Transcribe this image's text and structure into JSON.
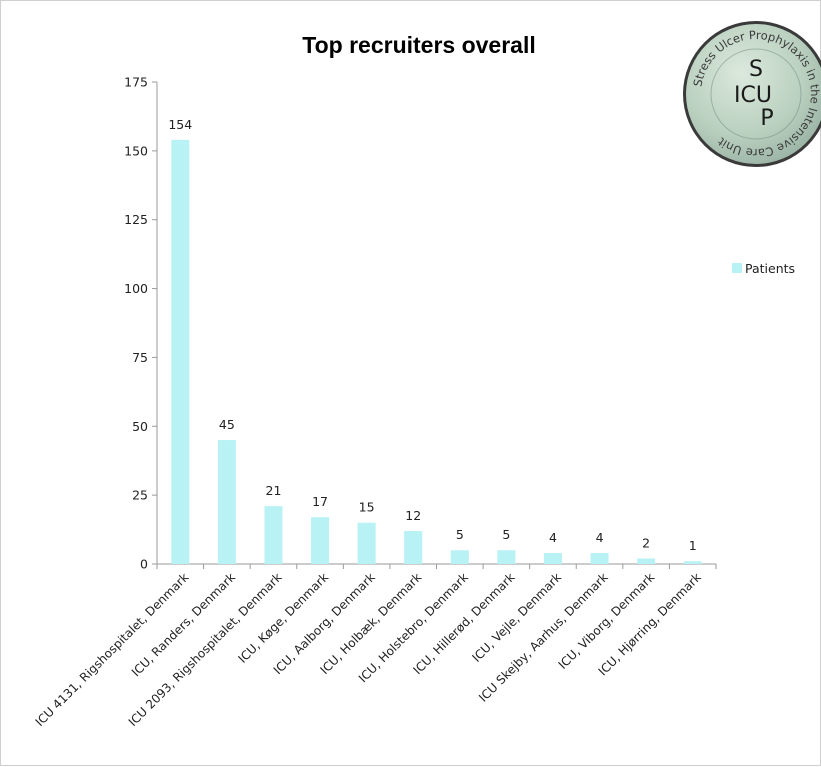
{
  "chart_data": {
    "type": "bar",
    "title": "Top recruiters overall",
    "xlabel": "",
    "ylabel": "",
    "ylim": [
      0,
      175
    ],
    "yticks": [
      0,
      25,
      50,
      75,
      100,
      125,
      150,
      175
    ],
    "grid": false,
    "legend_position": "right",
    "categories": [
      "ICU 4131, Rigshospitalet, Denmark",
      "ICU, Randers, Denmark",
      "ICU 2093, Rigshospitalet, Denmark",
      "ICU, Køge, Denmark",
      "ICU, Aalborg, Denmark",
      "ICU, Holbæk, Denmark",
      "ICU, Holstebro, Denmark",
      "ICU, Hillerød, Denmark",
      "ICU, Vejle, Denmark",
      "ICU Skejby, Aarhus, Denmark",
      "ICU, Viborg, Denmark",
      "ICU, Hjørring, Denmark"
    ],
    "series": [
      {
        "name": "Patients",
        "color": "#b8f2f4",
        "values": [
          154,
          45,
          21,
          17,
          15,
          12,
          5,
          5,
          4,
          4,
          2,
          1
        ]
      }
    ]
  },
  "logo": {
    "letters": [
      "S",
      "ICU",
      "P"
    ],
    "ring_text": "Stress Ulcer Prophylaxis in the Intensive Care Unit"
  }
}
